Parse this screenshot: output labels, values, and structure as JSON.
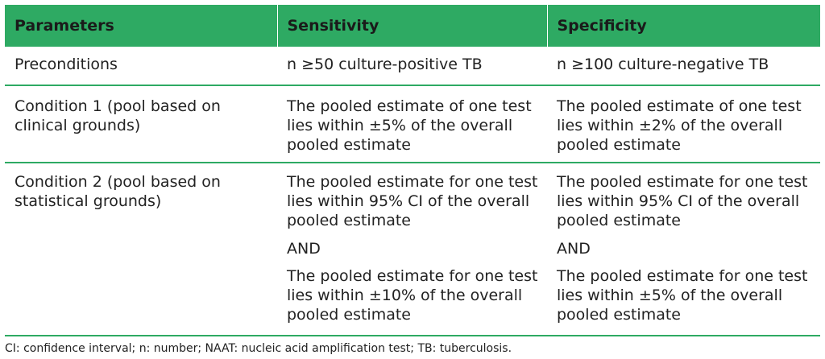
{
  "table": {
    "headers": [
      "Parameters",
      "Sensitivity",
      "Specificity"
    ],
    "rows": [
      {
        "parameter": "Preconditions",
        "sensitivity": "n ≥50 culture-positive TB",
        "specificity": "n ≥100 culture-negative TB"
      },
      {
        "parameter": "Condition 1 (pool based on clinical grounds)",
        "sensitivity": "The pooled estimate of one test lies within ±5% of the overall pooled estimate",
        "specificity": "The pooled estimate of one test lies within ±2% of the overall pooled estimate"
      },
      {
        "parameter": "Condition 2 (pool based on statistical grounds)",
        "sensitivity": {
          "part1": "The pooled estimate for one test lies within 95% CI of the overall pooled estimate",
          "connector": "AND",
          "part2": "The pooled estimate for one test lies within ±10% of the overall pooled estimate"
        },
        "specificity": {
          "part1": "The pooled estimate for one test lies within 95% CI of the overall pooled estimate",
          "connector": "AND",
          "part2": "The pooled estimate for one test lies within ±5% of the overall pooled estimate"
        }
      }
    ]
  },
  "footnote": "CI: confidence interval; n: number; NAAT: nucleic acid amplification test; TB: tuberculosis.",
  "colors": {
    "header_bg": "#2eaa63",
    "rule": "#2eaa63"
  }
}
